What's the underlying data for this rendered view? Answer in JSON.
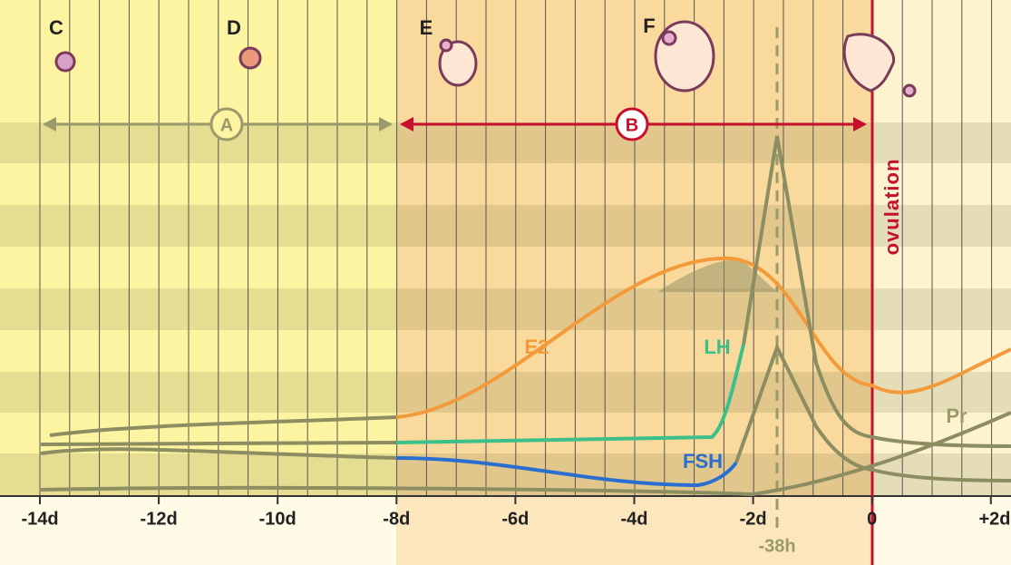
{
  "stages": [
    "C",
    "D",
    "E",
    "F"
  ],
  "phases": [
    "A",
    "B"
  ],
  "event": "ovulation",
  "hormones": [
    "E2",
    "LH",
    "FSH",
    "Pr"
  ],
  "x_axis": {
    "ticks": [
      "-14d",
      "-12d",
      "-10d",
      "-8d",
      "-6d",
      "-4d",
      "-2d",
      "0",
      "+2d"
    ],
    "lh_peak_label": "-38h"
  }
}
